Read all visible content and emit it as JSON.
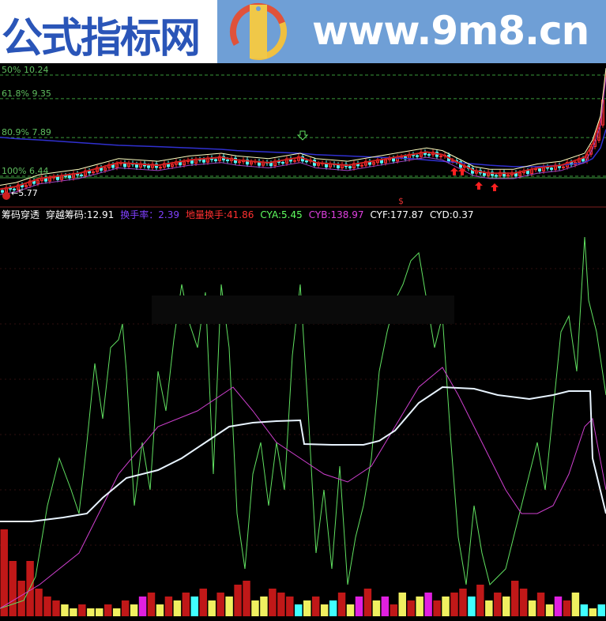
{
  "header": {
    "site_title": "公式指标网",
    "site_url": "www.9m8.cn",
    "logo_text": "www.9m8.cn"
  },
  "price_panel": {
    "fib_levels": [
      {
        "label": "50% 10.24",
        "price": 10.24
      },
      {
        "label": "61.8% 9.35",
        "price": 9.35
      },
      {
        "label": "80.9% 7.89",
        "price": 7.89
      },
      {
        "label": "100% 6.44",
        "price": 6.44
      }
    ],
    "low_label": "←5.77",
    "low_price": 5.77,
    "marker": "$",
    "colors": {
      "up": "#ff3030",
      "down": "#54ffff",
      "fib": "#3a9a3a",
      "ma_blue": "#3030d0"
    }
  },
  "legend": {
    "title": "筹码穿透",
    "items": [
      {
        "label": "穿越筹码:",
        "value": "12.91",
        "color": "#ffffff"
      },
      {
        "label": "换手率：",
        "value": "2.39",
        "color": "#8040ff"
      },
      {
        "label": "地量换手:",
        "value": "41.86",
        "color": "#ff3030"
      },
      {
        "label": "CYA:",
        "value": "5.45",
        "color": "#60ff60"
      },
      {
        "label": "CYB:",
        "value": "138.97",
        "color": "#e040e0"
      },
      {
        "label": "CYF:",
        "value": "177.87",
        "color": "#ffffff"
      },
      {
        "label": "CYD:",
        "value": "0.37",
        "color": "#ffffff"
      }
    ]
  },
  "chart_data": [
    {
      "type": "candlestick",
      "x": [
        0,
        20,
        50,
        100,
        150,
        200,
        240,
        280,
        300,
        340,
        380,
        400,
        440,
        480,
        520,
        540,
        560,
        580,
        600,
        620,
        650,
        680,
        710,
        740,
        750,
        760,
        767
      ],
      "close": [
        5.9,
        6.0,
        6.3,
        6.5,
        6.9,
        6.8,
        7.0,
        7.1,
        7.0,
        6.9,
        7.1,
        6.9,
        6.8,
        7.0,
        7.2,
        7.3,
        7.2,
        6.9,
        6.6,
        6.5,
        6.5,
        6.7,
        6.8,
        7.1,
        7.6,
        8.5,
        10.3
      ],
      "ma_blue": [
        7.9,
        7.85,
        7.8,
        7.7,
        7.6,
        7.55,
        7.5,
        7.45,
        7.4,
        7.35,
        7.3,
        7.25,
        7.2,
        7.15,
        7.1,
        7.05,
        7.0,
        6.95,
        6.9,
        6.85,
        6.8,
        6.8,
        6.85,
        6.95,
        7.1,
        7.5,
        8.2
      ],
      "ylim": [
        5.6,
        10.6
      ]
    },
    {
      "type": "line",
      "ylim": [
        0,
        99
      ],
      "series": [
        {
          "name": "CYA",
          "color": "#60e060",
          "x": [
            0,
            30,
            45,
            60,
            75,
            90,
            100,
            110,
            120,
            130,
            140,
            150,
            155,
            160,
            170,
            180,
            190,
            200,
            210,
            220,
            230,
            240,
            250,
            260,
            270,
            280,
            290,
            300,
            310,
            320,
            330,
            340,
            350,
            360,
            370,
            380,
            390,
            400,
            410,
            420,
            430,
            440,
            450,
            460,
            470,
            480,
            490,
            500,
            510,
            520,
            530,
            540,
            550,
            560,
            570,
            580,
            590,
            600,
            610,
            620,
            640,
            660,
            680,
            690,
            700,
            710,
            720,
            730,
            740,
            745,
            755,
            767
          ],
          "y": [
            2,
            4,
            10,
            28,
            40,
            32,
            26,
            44,
            64,
            50,
            68,
            70,
            74,
            62,
            28,
            44,
            32,
            62,
            52,
            70,
            84,
            74,
            68,
            82,
            36,
            84,
            68,
            26,
            12,
            36,
            44,
            28,
            44,
            32,
            66,
            84,
            52,
            16,
            32,
            12,
            38,
            8,
            20,
            28,
            40,
            62,
            72,
            80,
            84,
            90,
            92,
            80,
            68,
            76,
            46,
            20,
            8,
            28,
            16,
            8,
            12,
            28,
            44,
            32,
            52,
            72,
            76,
            62,
            96,
            80,
            72,
            56
          ]
        },
        {
          "name": "CYB",
          "color": "#d040d0",
          "x": [
            0,
            50,
            100,
            150,
            200,
            250,
            295,
            320,
            350,
            380,
            410,
            440,
            470,
            500,
            530,
            560,
            580,
            610,
            640,
            660,
            680,
            700,
            720,
            740,
            750,
            767
          ],
          "y": [
            2,
            8,
            16,
            36,
            48,
            52,
            58,
            52,
            44,
            40,
            36,
            34,
            38,
            48,
            58,
            63,
            56,
            44,
            32,
            26,
            26,
            28,
            36,
            48,
            50,
            32
          ]
        },
        {
          "name": "CYF",
          "color": "#e8f4ff",
          "x": [
            0,
            40,
            80,
            110,
            130,
            160,
            200,
            230,
            260,
            290,
            320,
            350,
            380,
            385,
            420,
            460,
            480,
            500,
            530,
            560,
            600,
            630,
            670,
            700,
            720,
            747,
            750,
            767
          ],
          "y": [
            24,
            24,
            25,
            26,
            30,
            35,
            37,
            40,
            44,
            48,
            49,
            49.4,
            49.6,
            43.6,
            43.4,
            43.4,
            44.4,
            47,
            54,
            58,
            57.6,
            56,
            55,
            56,
            57,
            57,
            40,
            26
          ]
        }
      ],
      "volume": {
        "values": [
          22,
          14,
          9,
          14,
          7,
          5,
          4,
          3,
          2,
          3,
          2,
          2,
          3,
          2,
          4,
          3,
          5,
          6,
          3,
          5,
          4,
          6,
          5,
          7,
          4,
          6,
          5,
          8,
          9,
          4,
          5,
          7,
          6,
          5,
          3,
          4,
          5,
          3,
          4,
          6,
          3,
          5,
          7,
          4,
          5,
          3,
          6,
          4,
          5,
          6,
          4,
          5,
          6,
          7,
          5,
          8,
          4,
          6,
          5,
          9,
          7,
          4,
          6,
          3,
          5,
          4,
          6,
          3,
          2,
          3
        ],
        "colors": [
          "r",
          "r",
          "r",
          "r",
          "r",
          "r",
          "r",
          "y",
          "y",
          "r",
          "y",
          "y",
          "r",
          "y",
          "r",
          "y",
          "m",
          "r",
          "y",
          "r",
          "y",
          "r",
          "c",
          "r",
          "y",
          "r",
          "y",
          "r",
          "r",
          "y",
          "y",
          "r",
          "r",
          "r",
          "c",
          "y",
          "r",
          "y",
          "c",
          "r",
          "y",
          "m",
          "r",
          "y",
          "m",
          "r",
          "y",
          "r",
          "y",
          "m",
          "r",
          "y",
          "r",
          "r",
          "c",
          "r",
          "y",
          "r",
          "y",
          "r",
          "r",
          "y",
          "r",
          "y",
          "m",
          "r",
          "y",
          "c",
          "y",
          "c"
        ]
      }
    }
  ]
}
